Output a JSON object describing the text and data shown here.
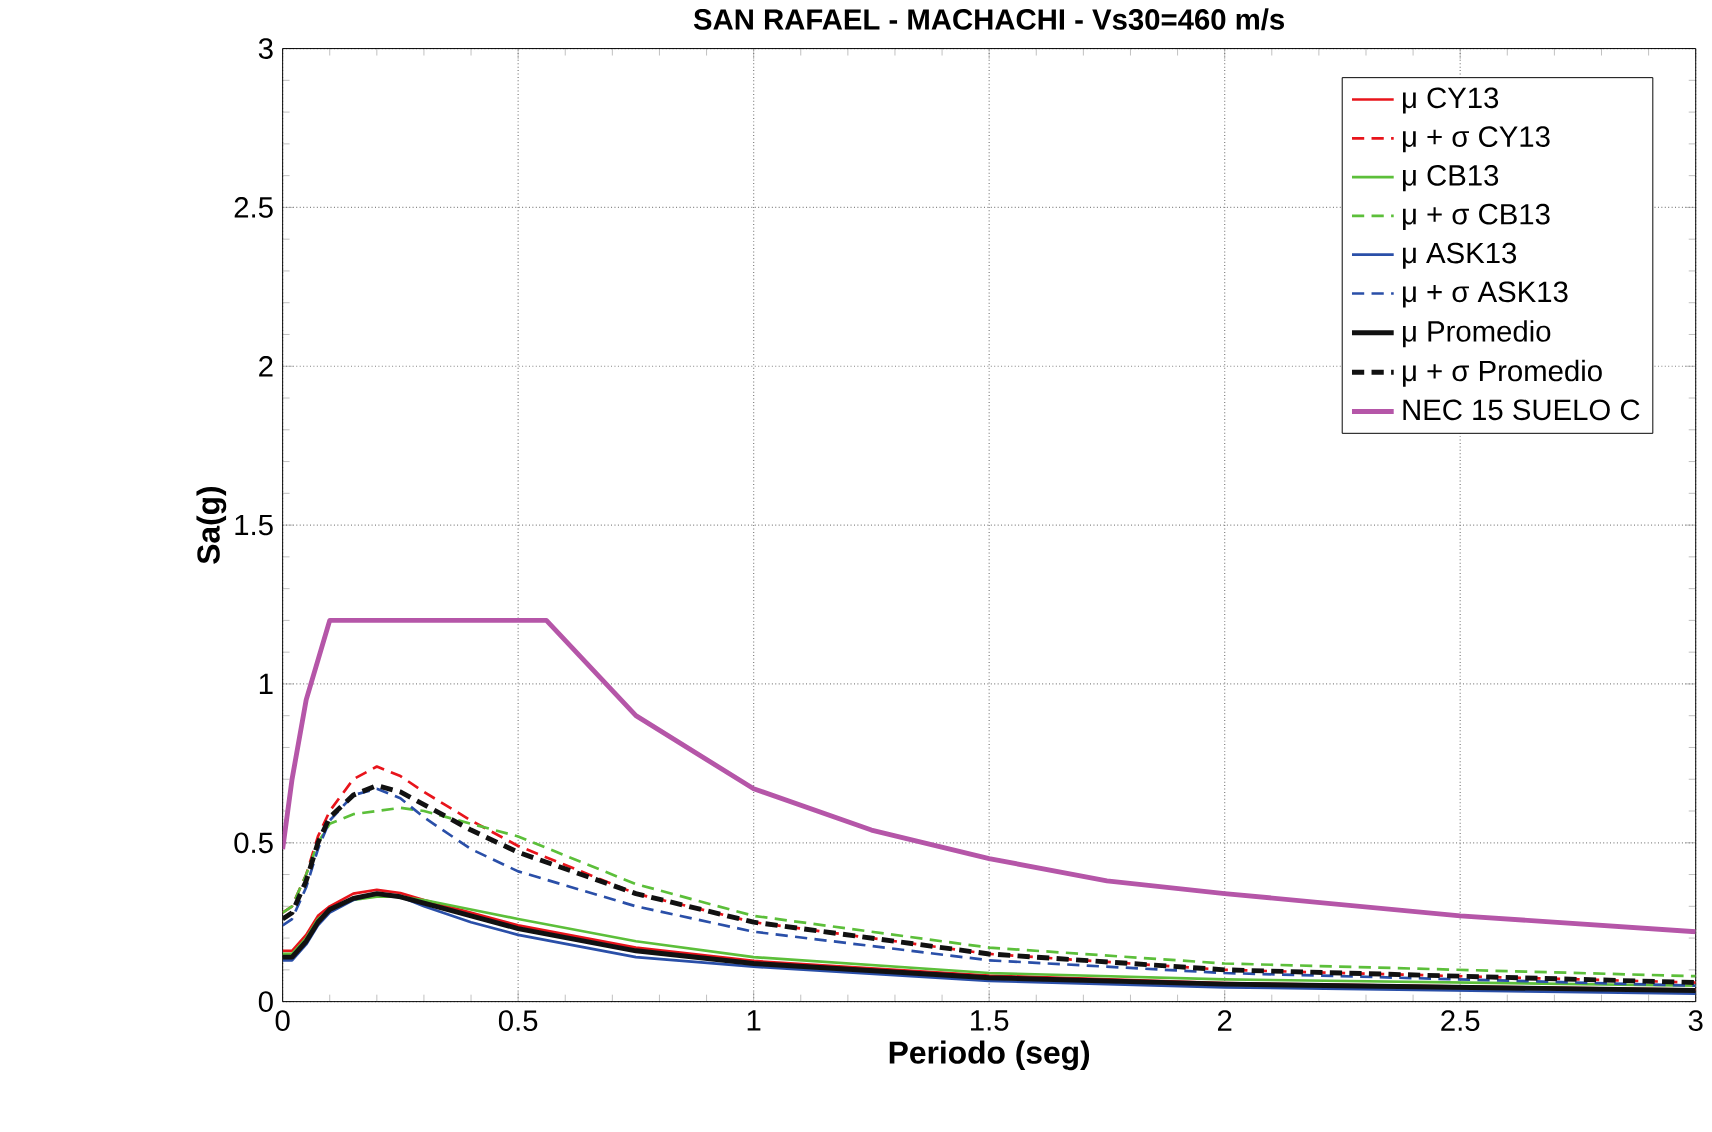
{
  "chart_data": {
    "type": "line",
    "title": "SAN RAFAEL - MACHACHI - Vs30=460 m/s",
    "xlabel": "Periodo (seg)",
    "ylabel": "Sa(g)",
    "x": [
      0,
      0.02,
      0.05,
      0.075,
      0.1,
      0.15,
      0.2,
      0.25,
      0.3,
      0.4,
      0.5,
      0.75,
      1,
      1.5,
      2,
      3
    ],
    "series": [
      {
        "name": "μ CY13",
        "color": "#e8141b",
        "line_style": "solid",
        "values": [
          0.16,
          0.16,
          0.21,
          0.27,
          0.3,
          0.34,
          0.352,
          0.342,
          0.32,
          0.28,
          0.24,
          0.17,
          0.128,
          0.082,
          0.058,
          0.038
        ]
      },
      {
        "name": "μ + σ CY13",
        "color": "#e8141b",
        "line_style": "dashed",
        "values": [
          0.28,
          0.3,
          0.4,
          0.52,
          0.6,
          0.7,
          0.74,
          0.71,
          0.66,
          0.57,
          0.49,
          0.34,
          0.25,
          0.15,
          0.1,
          0.06
        ]
      },
      {
        "name": "μ CB13",
        "color": "#5cbf3a",
        "line_style": "solid",
        "values": [
          0.15,
          0.15,
          0.2,
          0.26,
          0.29,
          0.32,
          0.33,
          0.33,
          0.32,
          0.29,
          0.26,
          0.19,
          0.14,
          0.09,
          0.07,
          0.05
        ]
      },
      {
        "name": "μ + σ CB13",
        "color": "#5cbf3a",
        "line_style": "dashed",
        "values": [
          0.28,
          0.3,
          0.4,
          0.5,
          0.56,
          0.59,
          0.6,
          0.61,
          0.6,
          0.56,
          0.52,
          0.37,
          0.27,
          0.17,
          0.12,
          0.08
        ]
      },
      {
        "name": "μ ASK13",
        "color": "#2a4fa8",
        "line_style": "solid",
        "values": [
          0.13,
          0.13,
          0.18,
          0.24,
          0.28,
          0.32,
          0.34,
          0.33,
          0.3,
          0.25,
          0.21,
          0.14,
          0.11,
          0.065,
          0.045,
          0.025
        ]
      },
      {
        "name": "μ + σ ASK13",
        "color": "#2a4fa8",
        "line_style": "dashed",
        "values": [
          0.24,
          0.26,
          0.36,
          0.48,
          0.57,
          0.65,
          0.67,
          0.64,
          0.58,
          0.48,
          0.41,
          0.3,
          0.22,
          0.13,
          0.09,
          0.05
        ]
      },
      {
        "name": "μ Promedio",
        "color": "#111111",
        "line_style": "solid",
        "values": [
          0.14,
          0.14,
          0.19,
          0.25,
          0.29,
          0.325,
          0.34,
          0.33,
          0.31,
          0.27,
          0.23,
          0.16,
          0.12,
          0.075,
          0.055,
          0.035
        ]
      },
      {
        "name": "μ + σ Promedio",
        "color": "#111111",
        "line_style": "dashed",
        "values": [
          0.26,
          0.28,
          0.38,
          0.5,
          0.58,
          0.65,
          0.68,
          0.66,
          0.62,
          0.54,
          0.47,
          0.34,
          0.25,
          0.15,
          0.1,
          0.06
        ]
      },
      {
        "name": "NEC 15 SUELO C",
        "color": "#b556a8",
        "line_style": "solid",
        "x": [
          0,
          0.02,
          0.05,
          0.1,
          0.56,
          0.75,
          1,
          1.25,
          1.5,
          1.75,
          2,
          2.5,
          3
        ],
        "values": [
          0.48,
          0.7,
          0.95,
          1.2,
          1.2,
          0.9,
          0.67,
          0.54,
          0.45,
          0.38,
          0.34,
          0.27,
          0.22
        ]
      }
    ],
    "xlim": [
      0,
      3
    ],
    "ylim": [
      0,
      3
    ],
    "xticks": [
      0,
      0.5,
      1,
      1.5,
      2,
      2.5,
      3
    ],
    "yticks": [
      0,
      0.5,
      1,
      1.5,
      2,
      2.5,
      3
    ],
    "grid": true,
    "legend": "top right",
    "marker": "none"
  }
}
